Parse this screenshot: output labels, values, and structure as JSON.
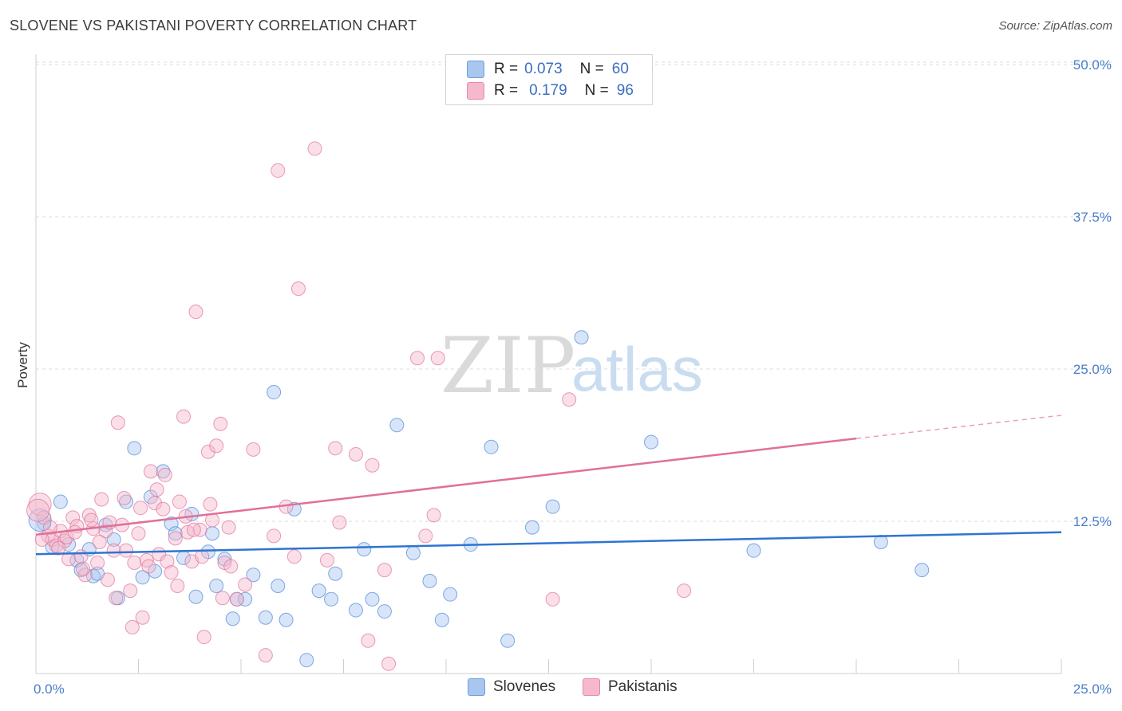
{
  "header": {
    "title": "SLOVENE VS PAKISTANI POVERTY CORRELATION CHART",
    "source": "Source: ZipAtlas.com"
  },
  "watermark": {
    "zip": "ZIP",
    "atlas": "atlas"
  },
  "legend": {
    "rows": [
      {
        "r_label": "R =",
        "r_value": "0.073",
        "n_label": "N =",
        "n_value": "60",
        "color": "#a9c6ef"
      },
      {
        "r_label": "R =",
        "r_value": "0.179",
        "n_label": "N =",
        "n_value": "96",
        "color": "#f5b8cc"
      }
    ]
  },
  "bottom_legend": {
    "slovenes": "Slovenes",
    "pakistanis": "Pakistanis"
  },
  "chart_data": {
    "type": "scatter",
    "title": "SLOVENE VS PAKISTANI POVERTY CORRELATION CHART",
    "xlabel": "",
    "ylabel": "Poverty",
    "xlim": [
      0,
      25
    ],
    "ylim": [
      0,
      52
    ],
    "x_ticks": [
      "0.0%",
      "25.0%"
    ],
    "y_ticks": [
      {
        "value": 12.5,
        "label": "12.5%"
      },
      {
        "value": 25.0,
        "label": "25.0%"
      },
      {
        "value": 37.5,
        "label": "37.5%"
      },
      {
        "value": 50.0,
        "label": "50.0%"
      }
    ],
    "grid": true,
    "legend_placement": "top-center",
    "series": [
      {
        "name": "Slovenes",
        "color": "#4a86d8",
        "fill": "#a9c6ef",
        "trend": {
          "x": [
            0,
            25
          ],
          "y": [
            9.8,
            11.6
          ]
        },
        "points": [
          [
            0.2,
            12.3
          ],
          [
            0.4,
            10.4
          ],
          [
            0.6,
            14.1
          ],
          [
            0.8,
            10.6
          ],
          [
            1.0,
            9.3
          ],
          [
            1.1,
            8.5
          ],
          [
            1.3,
            10.2
          ],
          [
            1.4,
            8.0
          ],
          [
            1.5,
            8.2
          ],
          [
            1.7,
            12.2
          ],
          [
            1.9,
            11.0
          ],
          [
            2.0,
            6.2
          ],
          [
            2.2,
            14.1
          ],
          [
            2.4,
            18.5
          ],
          [
            2.6,
            7.9
          ],
          [
            2.8,
            14.5
          ],
          [
            2.9,
            8.4
          ],
          [
            3.1,
            16.6
          ],
          [
            3.3,
            12.3
          ],
          [
            3.4,
            11.5
          ],
          [
            3.6,
            9.5
          ],
          [
            3.8,
            13.1
          ],
          [
            3.9,
            6.3
          ],
          [
            4.2,
            10.0
          ],
          [
            4.3,
            11.5
          ],
          [
            4.4,
            7.2
          ],
          [
            4.6,
            9.4
          ],
          [
            4.8,
            4.5
          ],
          [
            4.9,
            6.1
          ],
          [
            5.1,
            6.1
          ],
          [
            5.3,
            8.1
          ],
          [
            5.6,
            4.6
          ],
          [
            5.8,
            23.1
          ],
          [
            5.9,
            7.2
          ],
          [
            6.1,
            4.4
          ],
          [
            6.3,
            13.5
          ],
          [
            6.6,
            1.1
          ],
          [
            6.9,
            6.8
          ],
          [
            7.2,
            6.1
          ],
          [
            7.3,
            8.2
          ],
          [
            7.8,
            5.2
          ],
          [
            8.0,
            10.2
          ],
          [
            8.2,
            6.1
          ],
          [
            8.5,
            5.1
          ],
          [
            8.8,
            20.4
          ],
          [
            9.2,
            9.9
          ],
          [
            9.6,
            7.6
          ],
          [
            9.9,
            4.4
          ],
          [
            10.1,
            6.5
          ],
          [
            10.6,
            10.6
          ],
          [
            11.1,
            18.6
          ],
          [
            11.5,
            2.7
          ],
          [
            12.1,
            12.0
          ],
          [
            12.6,
            13.7
          ],
          [
            13.3,
            27.6
          ],
          [
            15.0,
            19.0
          ],
          [
            17.5,
            10.1
          ],
          [
            20.6,
            10.8
          ],
          [
            21.6,
            8.5
          ],
          [
            0.1,
            12.6
          ]
        ]
      },
      {
        "name": "Pakistanis",
        "color": "#e0709a",
        "fill": "#f5b8cc",
        "trend": {
          "x": [
            0,
            20
          ],
          "y": [
            11.4,
            19.3
          ]
        },
        "trend_dashed": {
          "x": [
            20,
            25
          ],
          "y": [
            19.3,
            21.2
          ]
        },
        "points": [
          [
            0.1,
            13.9
          ],
          [
            0.2,
            12.8
          ],
          [
            0.3,
            11.3
          ],
          [
            0.4,
            11.0
          ],
          [
            0.5,
            10.5
          ],
          [
            0.6,
            11.7
          ],
          [
            0.7,
            10.9
          ],
          [
            0.8,
            9.4
          ],
          [
            0.9,
            12.8
          ],
          [
            1.0,
            12.1
          ],
          [
            1.1,
            9.6
          ],
          [
            1.2,
            8.1
          ],
          [
            1.3,
            13.0
          ],
          [
            1.4,
            11.9
          ],
          [
            1.5,
            9.1
          ],
          [
            1.6,
            14.3
          ],
          [
            1.7,
            11.7
          ],
          [
            1.8,
            12.4
          ],
          [
            1.9,
            10.1
          ],
          [
            2.0,
            20.6
          ],
          [
            2.1,
            12.2
          ],
          [
            2.2,
            10.1
          ],
          [
            2.3,
            6.8
          ],
          [
            2.4,
            9.1
          ],
          [
            2.5,
            11.5
          ],
          [
            2.6,
            4.6
          ],
          [
            2.7,
            9.3
          ],
          [
            2.8,
            16.6
          ],
          [
            2.9,
            14.0
          ],
          [
            3.0,
            9.8
          ],
          [
            3.1,
            13.5
          ],
          [
            3.2,
            9.2
          ],
          [
            3.3,
            8.3
          ],
          [
            3.4,
            11.1
          ],
          [
            3.5,
            14.1
          ],
          [
            3.6,
            21.1
          ],
          [
            3.7,
            11.6
          ],
          [
            3.8,
            9.2
          ],
          [
            3.9,
            29.7
          ],
          [
            4.0,
            11.8
          ],
          [
            4.1,
            3.0
          ],
          [
            4.2,
            18.2
          ],
          [
            4.3,
            12.6
          ],
          [
            4.4,
            18.7
          ],
          [
            4.5,
            20.5
          ],
          [
            4.6,
            9.1
          ],
          [
            4.7,
            12.0
          ],
          [
            4.9,
            6.1
          ],
          [
            5.1,
            7.3
          ],
          [
            5.3,
            18.4
          ],
          [
            5.6,
            1.5
          ],
          [
            5.8,
            11.3
          ],
          [
            5.9,
            41.3
          ],
          [
            6.1,
            13.7
          ],
          [
            6.3,
            9.6
          ],
          [
            6.4,
            31.6
          ],
          [
            6.8,
            43.1
          ],
          [
            7.1,
            9.3
          ],
          [
            7.3,
            18.5
          ],
          [
            7.4,
            12.4
          ],
          [
            7.8,
            18.0
          ],
          [
            8.1,
            2.7
          ],
          [
            8.2,
            17.1
          ],
          [
            8.5,
            8.5
          ],
          [
            8.6,
            0.8
          ],
          [
            9.3,
            25.9
          ],
          [
            9.5,
            11.3
          ],
          [
            9.7,
            13.0
          ],
          [
            9.8,
            25.9
          ],
          [
            12.6,
            6.1
          ],
          [
            13.0,
            22.5
          ],
          [
            15.8,
            6.8
          ],
          [
            0.05,
            13.4
          ],
          [
            0.15,
            11.0
          ],
          [
            0.35,
            12.0
          ],
          [
            0.55,
            10.3
          ],
          [
            0.75,
            11.2
          ],
          [
            0.95,
            11.6
          ],
          [
            1.15,
            8.6
          ],
          [
            1.35,
            12.6
          ],
          [
            1.55,
            10.8
          ],
          [
            1.75,
            7.7
          ],
          [
            1.95,
            6.2
          ],
          [
            2.15,
            14.4
          ],
          [
            2.35,
            3.8
          ],
          [
            2.55,
            13.6
          ],
          [
            2.75,
            8.8
          ],
          [
            2.95,
            15.1
          ],
          [
            3.15,
            16.3
          ],
          [
            3.45,
            7.2
          ],
          [
            3.65,
            12.9
          ],
          [
            3.85,
            11.8
          ],
          [
            4.05,
            9.6
          ],
          [
            4.25,
            13.9
          ],
          [
            4.55,
            6.2
          ],
          [
            4.75,
            8.8
          ]
        ]
      }
    ]
  }
}
